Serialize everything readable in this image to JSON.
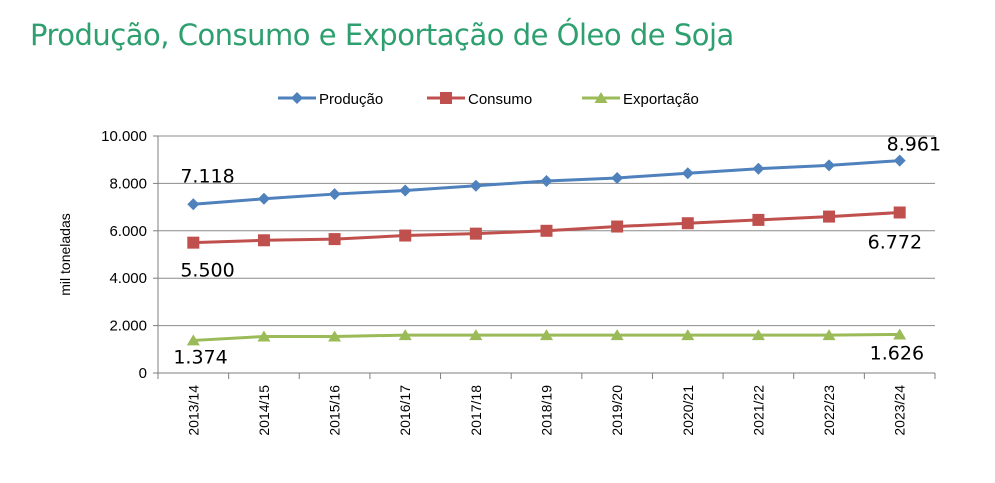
{
  "chart_data": {
    "type": "line",
    "title": "Produção, Consumo e Exportação de Óleo de Soja",
    "xlabel": "",
    "ylabel": "mil toneladas",
    "ylim": [
      0,
      10000
    ],
    "yticks": [
      0,
      2000,
      4000,
      6000,
      8000,
      10000
    ],
    "ytick_labels": [
      "0",
      "2.000",
      "4.000",
      "6.000",
      "8.000",
      "10.000"
    ],
    "categories": [
      "2013/14",
      "2014/15",
      "2015/16",
      "2016/17",
      "2017/18",
      "2018/19",
      "2019/20",
      "2020/21",
      "2021/22",
      "2022/23",
      "2023/24"
    ],
    "grid": true,
    "legend_position": "top",
    "series": [
      {
        "name": "Produção",
        "color": "#4f81bd",
        "marker": "diamond",
        "values": [
          7118,
          7350,
          7550,
          7700,
          7900,
          8100,
          8230,
          8430,
          8620,
          8760,
          8961
        ],
        "labels": [
          {
            "index": 0,
            "text": "7.118"
          },
          {
            "index": 10,
            "text": "8.961"
          }
        ]
      },
      {
        "name": "Consumo",
        "color": "#c0504d",
        "marker": "square",
        "values": [
          5500,
          5600,
          5650,
          5800,
          5880,
          6000,
          6180,
          6320,
          6460,
          6600,
          6772
        ],
        "labels": [
          {
            "index": 0,
            "text": "5.500"
          },
          {
            "index": 10,
            "text": "6.772"
          }
        ]
      },
      {
        "name": "Exportação",
        "color": "#9bbb59",
        "marker": "triangle",
        "values": [
          1374,
          1540,
          1540,
          1600,
          1600,
          1600,
          1600,
          1600,
          1600,
          1600,
          1626
        ],
        "labels": [
          {
            "index": 0,
            "text": "1.374"
          },
          {
            "index": 10,
            "text": "1.626"
          }
        ]
      }
    ]
  }
}
